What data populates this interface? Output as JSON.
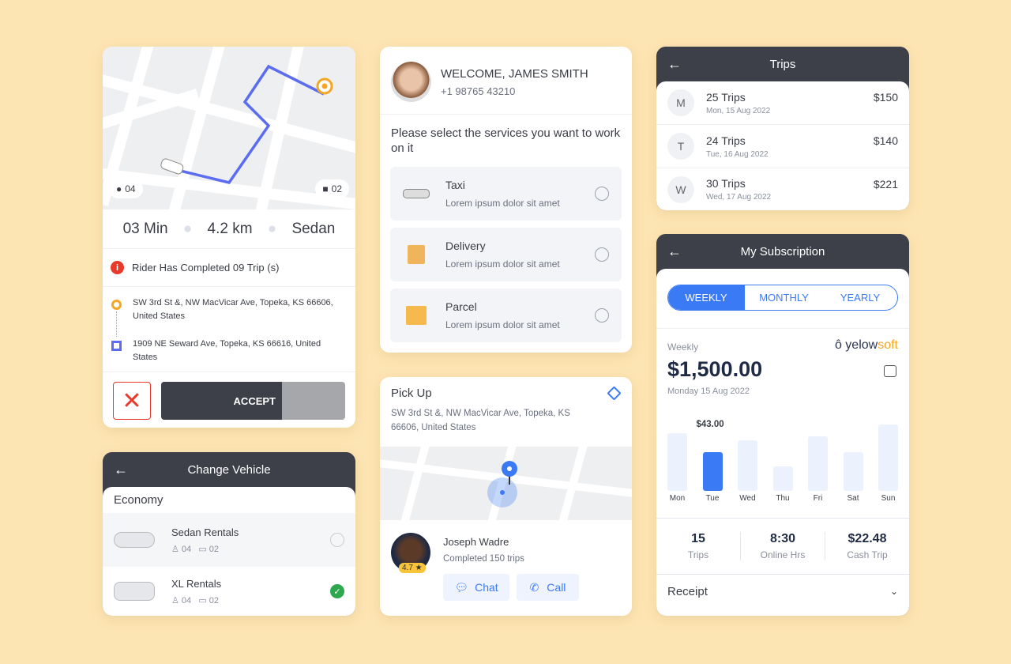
{
  "ride": {
    "passengers": "04",
    "bags": "02",
    "time": "03 Min",
    "distance": "4.2 km",
    "vehicle": "Sedan",
    "notice": "Rider Has Completed 09 Trip (s)",
    "pickup": "SW 3rd St &, NW MacVicar Ave, Topeka, KS 66606, United States",
    "dropoff": "1909 NE Seward Ave, Topeka, KS 66616, United States",
    "accept": "ACCEPT"
  },
  "vehicle": {
    "title": "Change Vehicle",
    "category": "Economy",
    "items": [
      {
        "name": "Sedan Rentals",
        "seats": "04",
        "bags": "02",
        "selected": false
      },
      {
        "name": "XL Rentals",
        "seats": "04",
        "bags": "02",
        "selected": true
      }
    ]
  },
  "welcome": {
    "greeting": "WELCOME, JAMES SMITH",
    "phone": "+1 98765 43210",
    "prompt": "Please select the services you want to work on it",
    "services": [
      {
        "name": "Taxi",
        "desc": "Lorem ipsum dolor sit amet"
      },
      {
        "name": "Delivery",
        "desc": "Lorem ipsum dolor sit amet"
      },
      {
        "name": "Parcel",
        "desc": "Lorem ipsum dolor sit amet"
      }
    ]
  },
  "pickup": {
    "title": "Pick Up",
    "address": "SW 3rd St &, NW MacVicar Ave, Topeka, KS 66606, United States",
    "driver": "Joseph Wadre",
    "completed": "Completed 150 trips",
    "rating": "4.7 ★",
    "chat": "Chat",
    "call": "Call"
  },
  "trips": {
    "title": "Trips",
    "items": [
      {
        "initial": "M",
        "count": "25 Trips",
        "date": "Mon, 15 Aug 2022",
        "amount": "$150"
      },
      {
        "initial": "T",
        "count": "24 Trips",
        "date": "Tue, 16 Aug 2022",
        "amount": "$140"
      },
      {
        "initial": "W",
        "count": "30 Trips",
        "date": "Wed, 17 Aug 2022",
        "amount": "$221"
      }
    ]
  },
  "subscription": {
    "title": "My Subscription",
    "tabs": [
      "WEEKLY",
      "MONTHLY",
      "YEARLY"
    ],
    "active_tab": 0,
    "period": "Weekly",
    "brand": "yelowsoft",
    "amount": "$1,500.00",
    "date": "Monday 15 Aug 2022",
    "stats": [
      {
        "value": "15",
        "label": "Trips"
      },
      {
        "value": "8:30",
        "label": "Online Hrs"
      },
      {
        "value": "$22.48",
        "label": "Cash Trip"
      }
    ],
    "receipt": "Receipt"
  },
  "chart_data": {
    "type": "bar",
    "categories": [
      "Mon",
      "Tue",
      "Wed",
      "Thu",
      "Fri",
      "Sat",
      "Sun"
    ],
    "values": [
      64,
      43,
      56,
      27,
      61,
      43,
      74
    ],
    "highlight": "Tue",
    "data_labels": {
      "Tue": "$43.00"
    },
    "colors": {
      "highlight": "#3b7af5",
      "bar": "#ebf2fd"
    }
  }
}
